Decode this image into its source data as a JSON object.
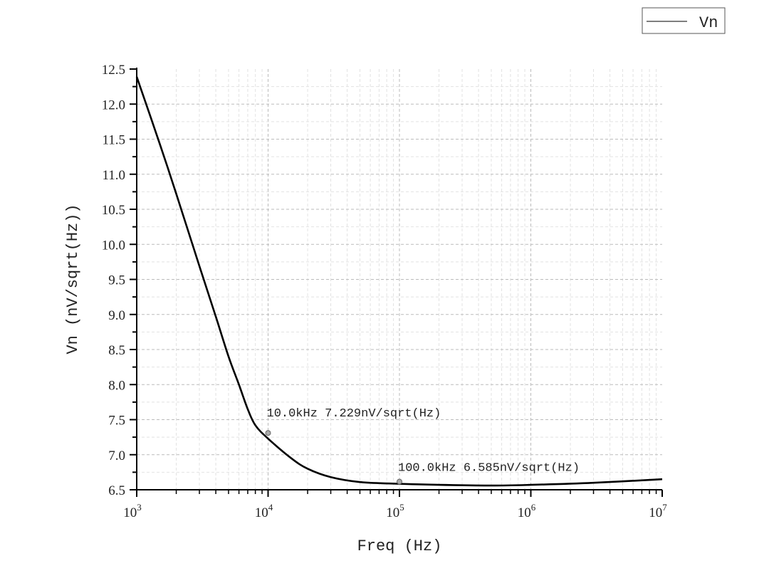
{
  "chart_data": {
    "type": "line",
    "title": "",
    "xlabel": "Freq (Hz)",
    "ylabel": "Vn (nV/sqrt(Hz))",
    "xscale": "log",
    "xlim": [
      1000,
      10000000
    ],
    "ylim": [
      6.5,
      12.5
    ],
    "grid": true,
    "legend_position": "top-right",
    "x_tick_labels": [
      {
        "base": "10",
        "exp": "3"
      },
      {
        "base": "10",
        "exp": "4"
      },
      {
        "base": "10",
        "exp": "5"
      },
      {
        "base": "10",
        "exp": "6"
      },
      {
        "base": "10",
        "exp": "7"
      }
    ],
    "y_tick_labels": [
      "6.5",
      "7.0",
      "7.5",
      "8.0",
      "8.5",
      "9.0",
      "9.5",
      "10.0",
      "10.5",
      "11.0",
      "11.5",
      "12.0",
      "12.5"
    ],
    "series": [
      {
        "name": "Vn",
        "color": "#000000",
        "x": [
          1000,
          1500,
          2000,
          3000,
          4000,
          5000,
          6000,
          7000,
          8000,
          10000,
          15000,
          20000,
          30000,
          50000,
          100000,
          200000,
          500000,
          1000000,
          3000000,
          10000000
        ],
        "y": [
          12.39,
          11.43,
          10.72,
          9.69,
          8.97,
          8.4,
          8.0,
          7.65,
          7.42,
          7.229,
          6.95,
          6.8,
          6.68,
          6.61,
          6.585,
          6.57,
          6.56,
          6.57,
          6.6,
          6.65
        ]
      }
    ],
    "annotations": [
      {
        "x": 10000,
        "y": 7.229,
        "text": "10.0kHz 7.229nV/sqrt(Hz)"
      },
      {
        "x": 100000,
        "y": 6.585,
        "text": "100.0kHz 6.585nV/sqrt(Hz)"
      }
    ]
  }
}
